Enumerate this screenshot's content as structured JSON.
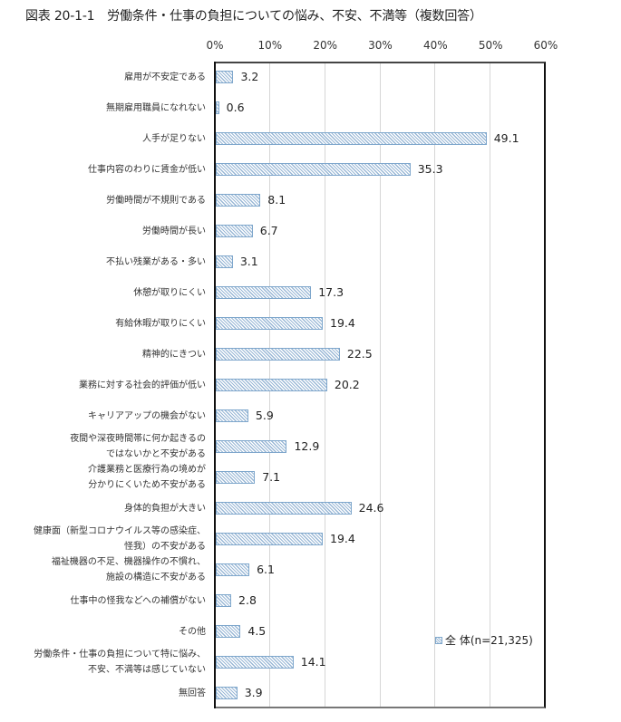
{
  "title": "図表 20-1-1　労働条件・仕事の負担についての悩み、不安、不満等（複数回答）",
  "legend": {
    "label": "全 体(n=21,325)"
  },
  "colors": {
    "bar_border": "#7fa7cc",
    "bar_hatch": "#9ab8d6",
    "gridline": "#d6d6d6"
  },
  "chart_data": {
    "type": "bar",
    "orientation": "horizontal",
    "title": "図表 20-1-1　労働条件・仕事の負担についての悩み、不安、不満等（複数回答）",
    "xlabel": "",
    "ylabel": "",
    "xlim": [
      0,
      60
    ],
    "x_ticks": [
      "0%",
      "10%",
      "20%",
      "30%",
      "40%",
      "50%",
      "60%"
    ],
    "x_tick_values": [
      0,
      10,
      20,
      30,
      40,
      50,
      60
    ],
    "grid": true,
    "legend_position": "bottom-right inside",
    "categories": [
      [
        "雇用が不安定である"
      ],
      [
        "無期雇用職員になれない"
      ],
      [
        "人手が足りない"
      ],
      [
        "仕事内容のわりに賃金が低い"
      ],
      [
        "労働時間が不規則である"
      ],
      [
        "労働時間が長い"
      ],
      [
        "不払い残業がある・多い"
      ],
      [
        "休憩が取りにくい"
      ],
      [
        "有給休暇が取りにくい"
      ],
      [
        "精神的にきつい"
      ],
      [
        "業務に対する社会的評価が低い"
      ],
      [
        "キャリアアップの機会がない"
      ],
      [
        "夜間や深夜時間帯に何か起きるの",
        "ではないかと不安がある"
      ],
      [
        "介護業務と医療行為の境めが",
        "分かりにくいため不安がある"
      ],
      [
        "身体的負担が大きい"
      ],
      [
        "健康面（新型コロナウイルス等の感染症、",
        "怪我）の不安がある"
      ],
      [
        "福祉機器の不足、機器操作の不慣れ、",
        "施設の構造に不安がある"
      ],
      [
        "仕事中の怪我などへの補償がない"
      ],
      [
        "その他"
      ],
      [
        "労働条件・仕事の負担について特に悩み、",
        "不安、不満等は感じていない"
      ],
      [
        "無回答"
      ]
    ],
    "series": [
      {
        "name": "全 体(n=21,325)",
        "values": [
          3.2,
          0.6,
          49.1,
          35.3,
          8.1,
          6.7,
          3.1,
          17.3,
          19.4,
          22.5,
          20.2,
          5.9,
          12.9,
          7.1,
          24.6,
          19.4,
          6.1,
          2.8,
          4.5,
          14.1,
          3.9
        ],
        "labels": [
          "3.2",
          "0.6",
          "49.1",
          "35.3",
          "8.1",
          "6.7",
          "3.1",
          "17.3",
          "19.4",
          "22.5",
          "20.2",
          "5.9",
          "12.9",
          "7.1",
          "24.6",
          "19.4",
          "6.1",
          "2.8",
          "4.5",
          "14.1",
          "3.9"
        ]
      }
    ]
  }
}
